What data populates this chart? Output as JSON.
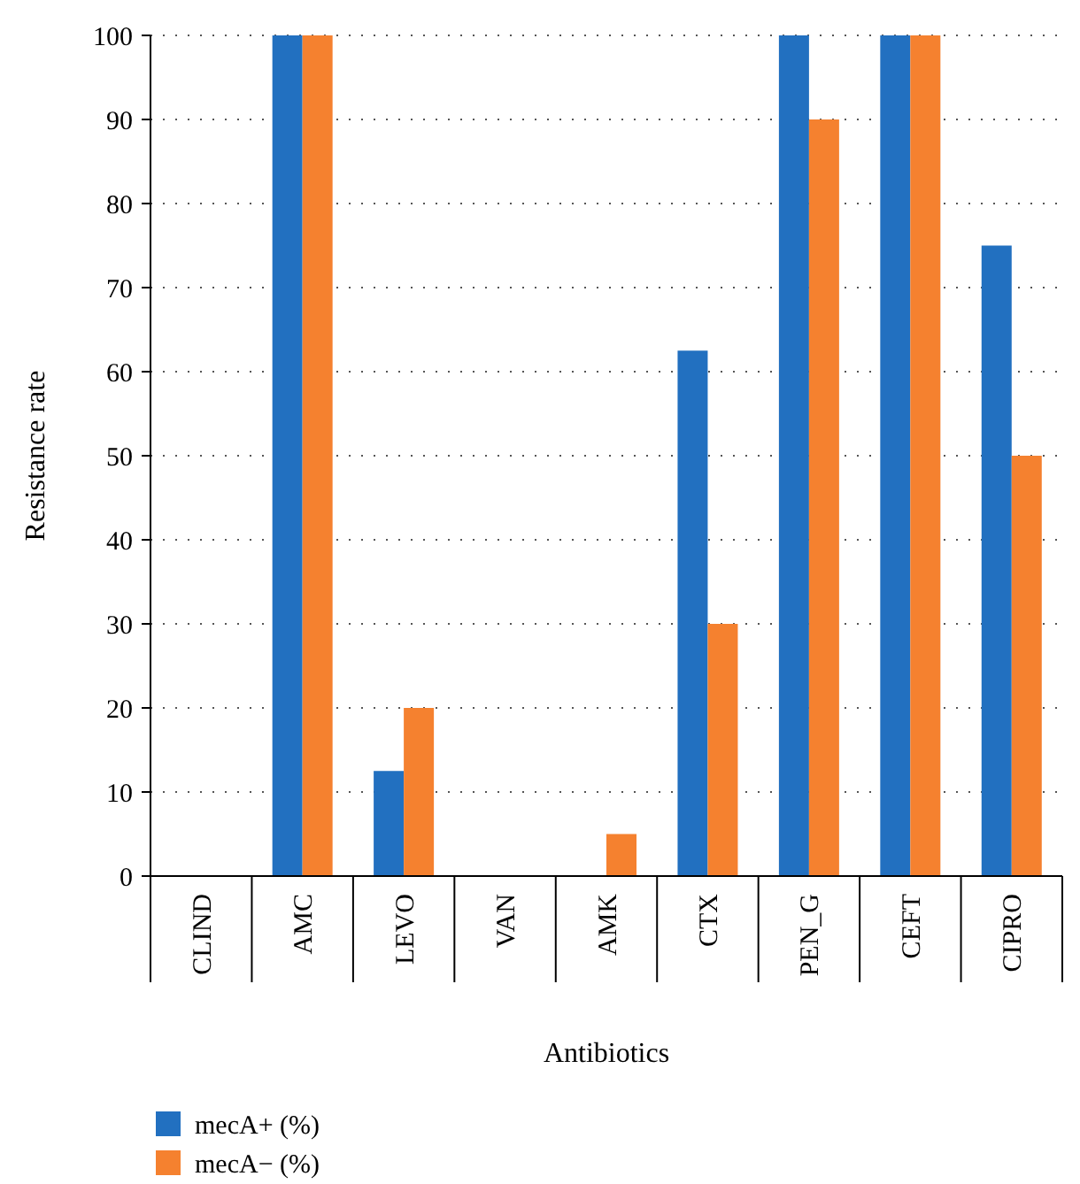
{
  "chart_data": {
    "type": "bar",
    "xlabel": "Antibiotics",
    "ylabel": "Resistance rate",
    "categories": [
      "CLIND",
      "AMC",
      "LEVO",
      "VAN",
      "AMK",
      "CTX",
      "PEN_G",
      "CEFT",
      "CIPRO"
    ],
    "series": [
      {
        "name": "mecA+ (%)",
        "color": "#2270c0",
        "values": [
          0,
          100,
          12.5,
          0,
          0,
          62.5,
          100,
          100,
          75
        ]
      },
      {
        "name": "mecA− (%)",
        "color": "#f5812f",
        "values": [
          0,
          100,
          20,
          0,
          5,
          30,
          90,
          100,
          50
        ]
      }
    ],
    "ylim": [
      0,
      100
    ],
    "yticks": [
      0,
      10,
      20,
      30,
      40,
      50,
      60,
      70,
      80,
      90,
      100
    ],
    "grid": "y",
    "legend": "bottom left"
  }
}
